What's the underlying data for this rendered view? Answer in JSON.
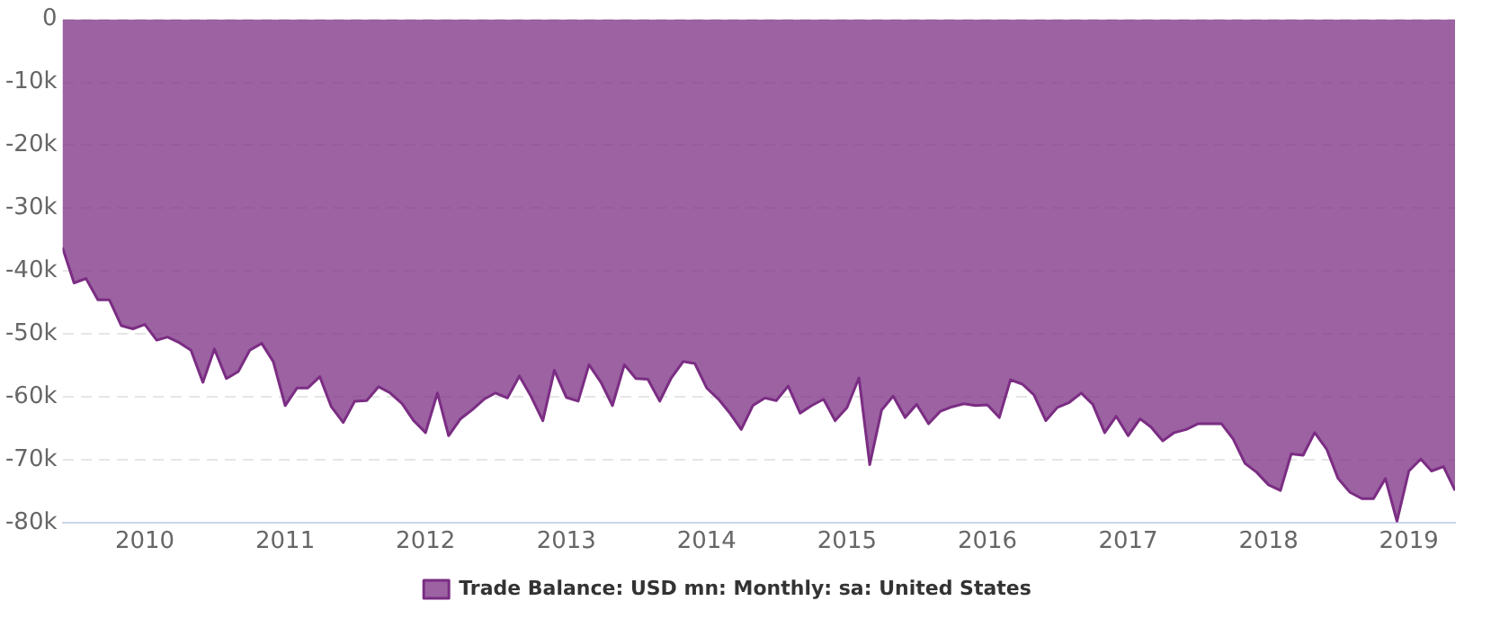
{
  "chart_data": {
    "type": "area",
    "x": [
      "2009-06",
      "2009-07",
      "2009-08",
      "2009-09",
      "2009-10",
      "2009-11",
      "2009-12",
      "2010-01",
      "2010-02",
      "2010-03",
      "2010-04",
      "2010-05",
      "2010-06",
      "2010-07",
      "2010-08",
      "2010-09",
      "2010-10",
      "2010-11",
      "2010-12",
      "2011-01",
      "2011-02",
      "2011-03",
      "2011-04",
      "2011-05",
      "2011-06",
      "2011-07",
      "2011-08",
      "2011-09",
      "2011-10",
      "2011-11",
      "2011-12",
      "2012-01",
      "2012-02",
      "2012-03",
      "2012-04",
      "2012-05",
      "2012-06",
      "2012-07",
      "2012-08",
      "2012-09",
      "2012-10",
      "2012-11",
      "2012-12",
      "2013-01",
      "2013-02",
      "2013-03",
      "2013-04",
      "2013-05",
      "2013-06",
      "2013-07",
      "2013-08",
      "2013-09",
      "2013-10",
      "2013-11",
      "2013-12",
      "2014-01",
      "2014-02",
      "2014-03",
      "2014-04",
      "2014-05",
      "2014-06",
      "2014-07",
      "2014-08",
      "2014-09",
      "2014-10",
      "2014-11",
      "2014-12",
      "2015-01",
      "2015-02",
      "2015-03",
      "2015-04",
      "2015-05",
      "2015-06",
      "2015-07",
      "2015-08",
      "2015-09",
      "2015-10",
      "2015-11",
      "2015-12",
      "2016-01",
      "2016-02",
      "2016-03",
      "2016-04",
      "2016-05",
      "2016-06",
      "2016-07",
      "2016-08",
      "2016-09",
      "2016-10",
      "2016-11",
      "2016-12",
      "2017-01",
      "2017-02",
      "2017-03",
      "2017-04",
      "2017-05",
      "2017-06",
      "2017-07",
      "2017-08",
      "2017-09",
      "2017-10",
      "2017-11",
      "2017-12",
      "2018-01",
      "2018-02",
      "2018-03",
      "2018-04",
      "2018-05",
      "2018-06",
      "2018-07",
      "2018-08",
      "2018-09",
      "2018-10",
      "2018-11",
      "2018-12",
      "2019-01",
      "2019-02",
      "2019-03",
      "2019-04",
      "2019-05"
    ],
    "series": [
      {
        "name": "Trade Balance: USD mn: Monthly: sa: United States",
        "color": "#7b2d83",
        "values": [
          -36300,
          -41900,
          -41200,
          -44600,
          -44600,
          -48700,
          -49200,
          -48500,
          -51000,
          -50500,
          -51400,
          -52600,
          -57700,
          -52400,
          -57100,
          -56000,
          -52600,
          -51500,
          -54400,
          -61400,
          -58600,
          -58600,
          -56800,
          -61600,
          -64100,
          -60700,
          -60600,
          -58400,
          -59400,
          -61100,
          -63800,
          -65700,
          -59400,
          -66200,
          -63500,
          -62100,
          -60400,
          -59400,
          -60200,
          -56700,
          -59900,
          -63800,
          -55800,
          -60100,
          -60700,
          -54900,
          -57700,
          -61400,
          -54900,
          -57100,
          -57200,
          -60700,
          -57000,
          -54400,
          -54700,
          -58600,
          -60400,
          -62500,
          -65200,
          -61400,
          -60200,
          -60600,
          -58300,
          -62600,
          -61400,
          -60400,
          -63800,
          -61700,
          -57000,
          -70800,
          -62100,
          -59900,
          -63300,
          -61200,
          -64300,
          -62300,
          -61600,
          -61100,
          -61400,
          -61300,
          -63300,
          -57300,
          -58000,
          -59700,
          -63800,
          -61700,
          -60900,
          -59400,
          -61200,
          -65700,
          -63100,
          -66200,
          -63500,
          -64800,
          -67000,
          -65700,
          -65200,
          -64300,
          -64300,
          -64300,
          -66700,
          -70600,
          -72000,
          -74000,
          -74900,
          -69100,
          -69300,
          -65700,
          -68300,
          -73000,
          -75200,
          -76200,
          -76200,
          -73000,
          -79800,
          -71800,
          -69900,
          -71800,
          -71100,
          -74900
        ]
      }
    ],
    "xlim": [
      "2009-06",
      "2019-05"
    ],
    "xticks": [
      "2010",
      "2011",
      "2012",
      "2013",
      "2014",
      "2015",
      "2016",
      "2017",
      "2018",
      "2019"
    ],
    "ylim": [
      -80000,
      0
    ],
    "yticks": [
      {
        "value": -80000,
        "label": "-80k"
      },
      {
        "value": -70000,
        "label": "-70k"
      },
      {
        "value": -60000,
        "label": "-60k"
      },
      {
        "value": -50000,
        "label": "-50k"
      },
      {
        "value": -40000,
        "label": "-40k"
      },
      {
        "value": -30000,
        "label": "-30k"
      },
      {
        "value": -20000,
        "label": "-20k"
      },
      {
        "value": -10000,
        "label": "-10k"
      },
      {
        "value": 0,
        "label": "0"
      }
    ],
    "grid": "y",
    "legend": "bottom"
  }
}
